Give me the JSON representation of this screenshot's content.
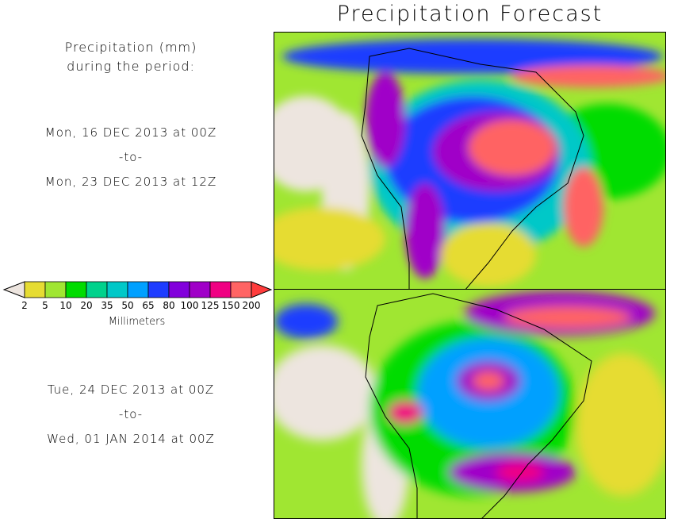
{
  "title": "Precipitation Forecast",
  "description": {
    "line1": "Precipitation (mm)",
    "line2": "during the period:"
  },
  "periods": [
    {
      "start": "Mon, 16 DEC 2013 at 00Z",
      "separator": "-to-",
      "end": "Mon, 23 DEC 2013 at 12Z"
    },
    {
      "start": "Tue, 24 DEC 2013 at 00Z",
      "separator": "-to-",
      "end": "Wed, 01 JAN 2014 at 00Z"
    }
  ],
  "legend": {
    "unit_label": "Millimeters",
    "ticks": [
      "2",
      "5",
      "10",
      "20",
      "35",
      "50",
      "65",
      "80",
      "100",
      "125",
      "150",
      "200"
    ],
    "below_color": "#ede5df",
    "colors": [
      "#e6dc32",
      "#a0e632",
      "#00dc00",
      "#00d28c",
      "#00c8c8",
      "#00a0ff",
      "#1e3cff",
      "#8200dc",
      "#a000c8",
      "#f00082",
      "#ff6464"
    ],
    "above_color": "#ff3c3c"
  },
  "map_colors": {
    "land_dry": "#ede5df",
    "coastline": "#000000"
  }
}
